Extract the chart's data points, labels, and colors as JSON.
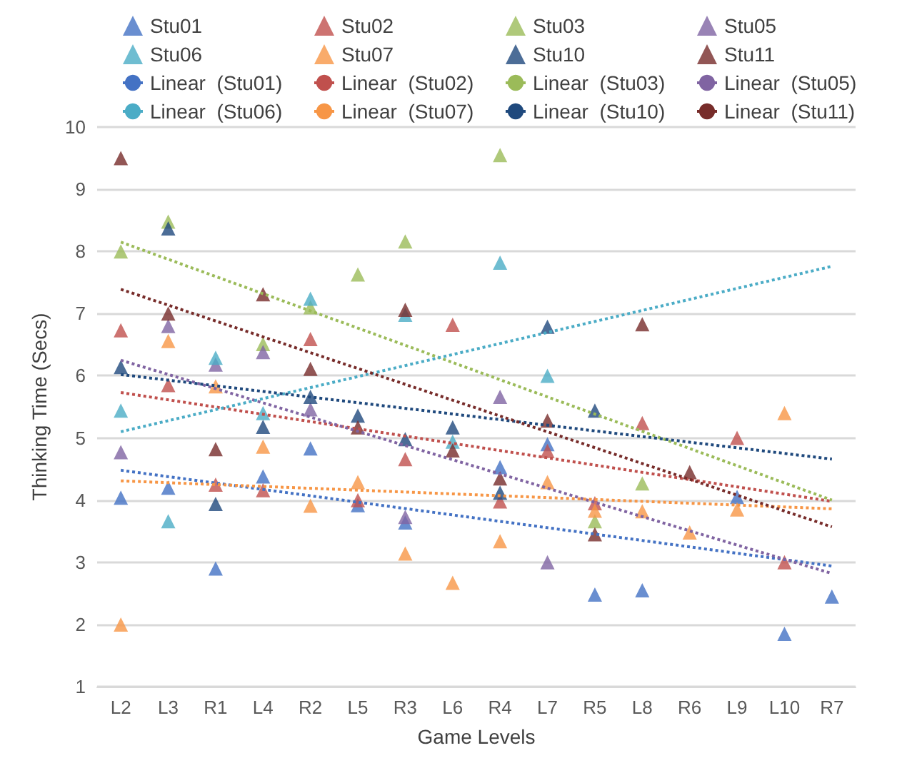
{
  "chart_data": {
    "type": "scatter",
    "xlabel": "Game Levels",
    "ylabel": "Thinking Time (Secs)",
    "categories": [
      "L2",
      "L3",
      "R1",
      "L4",
      "R2",
      "L5",
      "R3",
      "L6",
      "R4",
      "L7",
      "R5",
      "L8",
      "R6",
      "L9",
      "L10",
      "R7"
    ],
    "ylim": [
      1,
      10
    ],
    "yticks": [
      1,
      2,
      3,
      4,
      5,
      6,
      7,
      8,
      9,
      10
    ],
    "grid": "y",
    "legend": "top",
    "marker": "triangle",
    "series": [
      {
        "name": "Stu01",
        "color": "#4472c4",
        "values": [
          4.04,
          4.2,
          2.9,
          4.38,
          4.83,
          3.92,
          3.64,
          null,
          4.53,
          4.9,
          2.48,
          2.55,
          null,
          4.05,
          1.85,
          2.45
        ]
      },
      {
        "name": "Stu02",
        "color": "#c0504d",
        "values": [
          6.73,
          5.85,
          4.25,
          4.16,
          6.59,
          4.0,
          4.66,
          6.82,
          3.98,
          4.79,
          3.95,
          5.24,
          null,
          5.0,
          3.0,
          null
        ]
      },
      {
        "name": "Stu03",
        "color": "#9bbb59",
        "values": [
          8.0,
          8.48,
          null,
          6.51,
          7.1,
          7.63,
          8.16,
          null,
          9.55,
          null,
          3.66,
          4.27,
          null,
          null,
          null,
          null
        ]
      },
      {
        "name": "Stu05",
        "color": "#8064a2",
        "values": [
          4.77,
          6.8,
          6.18,
          6.38,
          5.46,
          null,
          3.73,
          null,
          5.66,
          3.0,
          null,
          null,
          null,
          null,
          null,
          null
        ]
      },
      {
        "name": "Stu06",
        "color": "#4bacc6",
        "values": [
          5.44,
          3.66,
          6.29,
          5.4,
          7.24,
          null,
          6.98,
          4.94,
          7.82,
          6.0,
          null,
          null,
          null,
          null,
          null,
          null
        ]
      },
      {
        "name": "Stu07",
        "color": "#f79646",
        "values": [
          2.0,
          6.56,
          5.83,
          4.86,
          3.91,
          4.29,
          3.14,
          2.67,
          3.34,
          4.29,
          3.83,
          3.82,
          3.48,
          3.85,
          5.4,
          null
        ]
      },
      {
        "name": "Stu10",
        "color": "#1f497d",
        "values": [
          6.14,
          8.37,
          3.94,
          5.18,
          5.66,
          5.36,
          4.98,
          5.17,
          4.12,
          6.79,
          5.44,
          null,
          null,
          null,
          null,
          null
        ]
      },
      {
        "name": "Stu11",
        "color": "#772c2a",
        "values": [
          9.5,
          7.0,
          4.82,
          7.31,
          6.11,
          5.17,
          7.06,
          4.8,
          4.35,
          5.28,
          3.45,
          6.83,
          4.45,
          null,
          null,
          null
        ]
      },
      {
        "name": "Linear  (Stu01)",
        "type": "line",
        "line_style": "dotted",
        "marker": "none",
        "color": "#4472c4",
        "x": [
          "L2",
          "R7"
        ],
        "values": [
          4.48,
          2.94
        ]
      },
      {
        "name": "Linear  (Stu02)",
        "type": "line",
        "line_style": "dotted",
        "marker": "none",
        "color": "#c0504d",
        "x": [
          "L2",
          "R7"
        ],
        "values": [
          5.73,
          3.98
        ]
      },
      {
        "name": "Linear  (Stu03)",
        "type": "line",
        "line_style": "dotted",
        "marker": "none",
        "color": "#9bbb59",
        "x": [
          "L2",
          "R7"
        ],
        "values": [
          8.15,
          4.0
        ]
      },
      {
        "name": "Linear  (Stu05)",
        "type": "line",
        "line_style": "dotted",
        "marker": "none",
        "color": "#8064a2",
        "x": [
          "L2",
          "R7"
        ],
        "values": [
          6.25,
          2.82
        ]
      },
      {
        "name": "Linear  (Stu06)",
        "type": "line",
        "line_style": "dotted",
        "marker": "none",
        "color": "#4bacc6",
        "x": [
          "L2",
          "R7"
        ],
        "values": [
          5.1,
          7.76
        ]
      },
      {
        "name": "Linear  (Stu07)",
        "type": "line",
        "line_style": "dotted",
        "marker": "none",
        "color": "#f79646",
        "x": [
          "L2",
          "R7"
        ],
        "values": [
          4.31,
          3.86
        ]
      },
      {
        "name": "Linear  (Stu10)",
        "type": "line",
        "line_style": "dotted",
        "marker": "none",
        "color": "#1f497d",
        "x": [
          "L2",
          "R7"
        ],
        "values": [
          6.02,
          4.66
        ]
      },
      {
        "name": "Linear  (Stu11)",
        "type": "line",
        "line_style": "dotted",
        "marker": "none",
        "color": "#772c2a",
        "x": [
          "L2",
          "R7"
        ],
        "values": [
          7.39,
          3.57
        ]
      }
    ]
  }
}
